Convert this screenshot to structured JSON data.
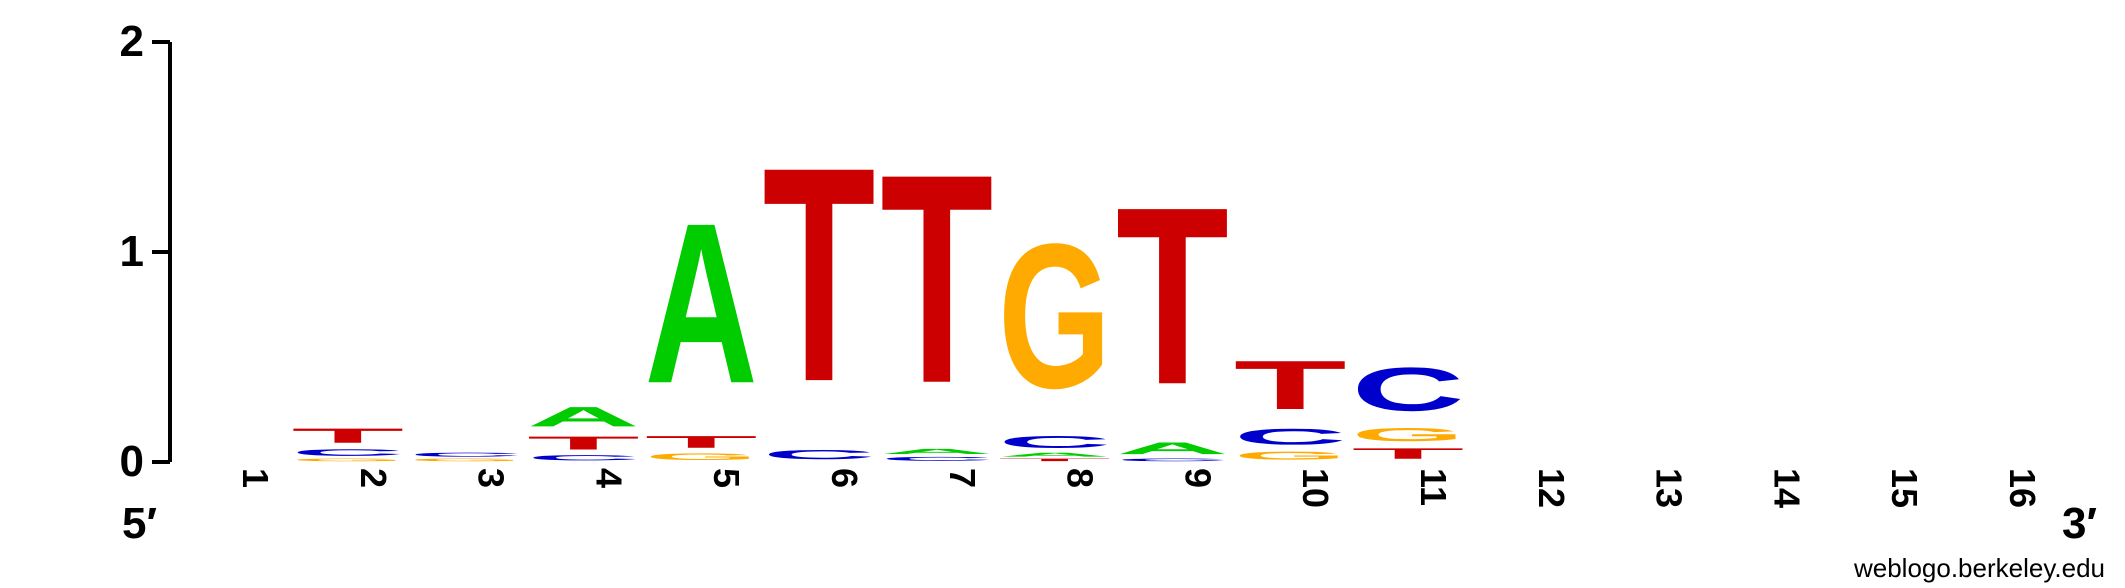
{
  "chart_data": {
    "type": "sequence-logo",
    "ylim": [
      0,
      2
    ],
    "y_ticks": [
      "0",
      "1",
      "2"
    ],
    "positions": [
      "1",
      "2",
      "3",
      "4",
      "5",
      "6",
      "7",
      "8",
      "9",
      "10",
      "11",
      "12",
      "13",
      "14",
      "15",
      "16"
    ],
    "end_labels": {
      "five_prime": "5′",
      "three_prime": "3′"
    },
    "colors": {
      "A": "#00cc00",
      "C": "#0000cc",
      "G": "#ffaa00",
      "T": "#cc0000"
    },
    "stacks": [
      [],
      [
        {
          "letter": "G",
          "height": 0.02
        },
        {
          "letter": "C",
          "height": 0.05
        },
        {
          "letter": "T",
          "height": 0.11
        }
      ],
      [
        {
          "letter": "G",
          "height": 0.02
        },
        {
          "letter": "C",
          "height": 0.03
        }
      ],
      [
        {
          "letter": "C",
          "height": 0.04
        },
        {
          "letter": "T",
          "height": 0.1
        },
        {
          "letter": "A",
          "height": 0.15
        }
      ],
      [
        {
          "letter": "G",
          "height": 0.05
        },
        {
          "letter": "T",
          "height": 0.09
        },
        {
          "letter": "A",
          "height": 1.22
        }
      ],
      [
        {
          "letter": "C",
          "height": 0.07
        },
        {
          "letter": "T",
          "height": 1.63
        }
      ],
      [
        {
          "letter": "C",
          "height": 0.03
        },
        {
          "letter": "A",
          "height": 0.04
        },
        {
          "letter": "T",
          "height": 1.59
        }
      ],
      [
        {
          "letter": "T",
          "height": 0.02
        },
        {
          "letter": "A",
          "height": 0.03
        },
        {
          "letter": "C",
          "height": 0.09
        },
        {
          "letter": "G",
          "height": 1.1
        }
      ],
      [
        {
          "letter": "C",
          "height": 0.02
        },
        {
          "letter": "A",
          "height": 0.09
        },
        {
          "letter": "T",
          "height": 1.35
        }
      ],
      [
        {
          "letter": "G",
          "height": 0.06
        },
        {
          "letter": "C",
          "height": 0.12
        },
        {
          "letter": "T",
          "height": 0.37
        }
      ],
      [
        {
          "letter": "T",
          "height": 0.08
        },
        {
          "letter": "G",
          "height": 0.1
        },
        {
          "letter": "C",
          "height": 0.33
        }
      ],
      [],
      [],
      [],
      [],
      []
    ]
  },
  "credit": "weblogo.berkeley.edu"
}
